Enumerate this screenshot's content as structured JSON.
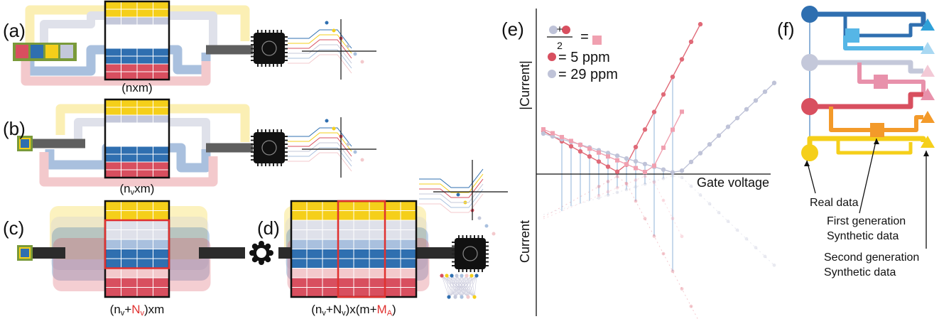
{
  "panel_a": {
    "label": "(a)",
    "matrix_label": [
      "(nxm)"
    ]
  },
  "panel_b": {
    "label": "(b)",
    "matrix_label": [
      "(n",
      "v",
      "xm)"
    ]
  },
  "panel_c": {
    "label": "(c)",
    "matrix_label": [
      "(n",
      "v",
      "+",
      "N",
      "v",
      ")xm"
    ]
  },
  "panel_d": {
    "label": "(d)",
    "matrix_label": [
      "(n",
      "v",
      "+N",
      "v",
      ")x(m+",
      "M",
      "A",
      ")"
    ]
  },
  "panel_e": {
    "label": "(e)",
    "legend": {
      "plus": "+",
      "denominator": "2",
      "equals": "=",
      "items": [
        "= 5 ppm",
        "= 29 ppm"
      ]
    },
    "y_label_top": "|Current|",
    "y_label_bottom": "Current",
    "x_label": "Gate voltage"
  },
  "panel_f": {
    "label": "(f)",
    "real": "Real data",
    "first": [
      "First generation",
      "Synthetic data"
    ],
    "second": [
      "Second generation",
      "Synthetic data"
    ]
  }
}
